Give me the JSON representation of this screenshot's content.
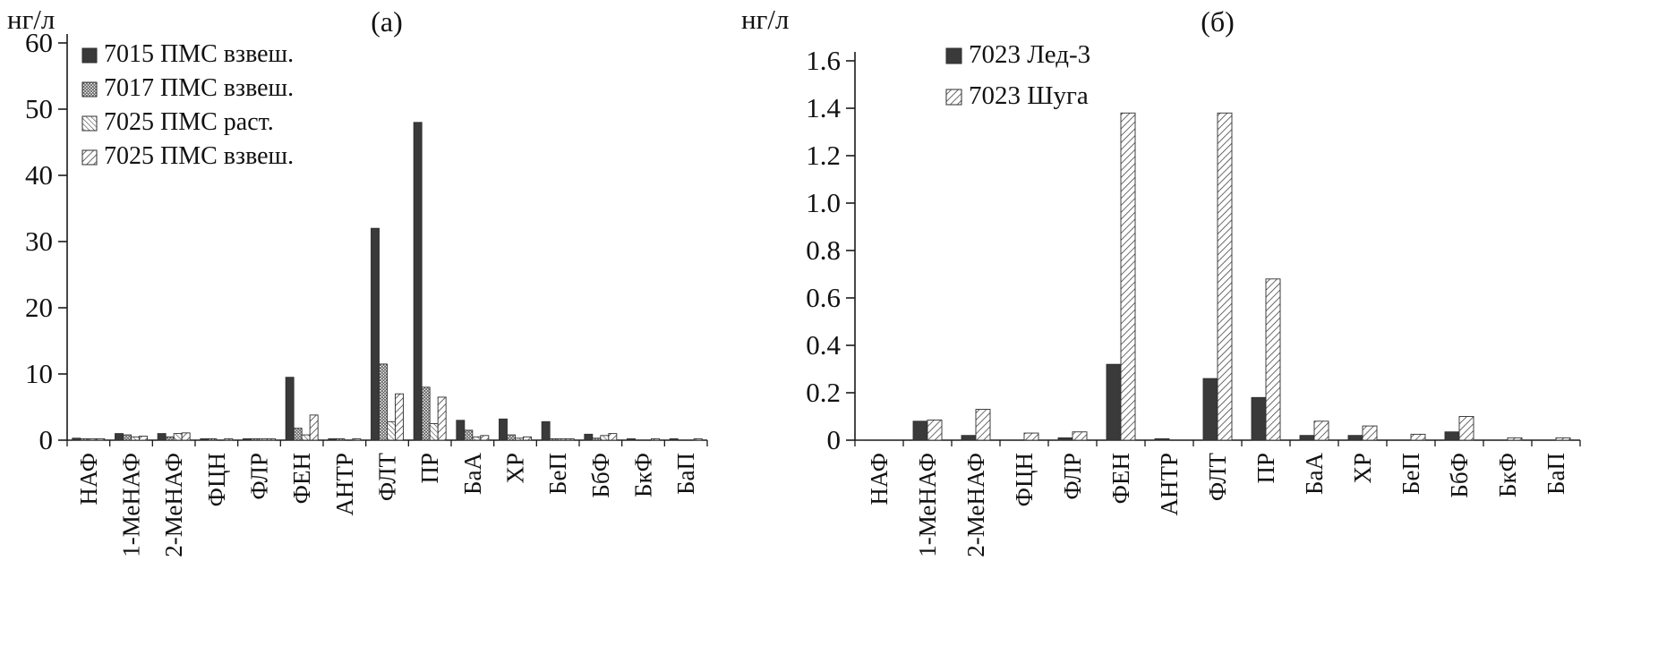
{
  "colors": {
    "background": "#ffffff",
    "bar_dark": "#3a3a3a",
    "hatch": "#3a3a3a",
    "axis": "#1a1a1a",
    "text": "#111111"
  },
  "chart_data": [
    {
      "type": "bar",
      "title": "(а)",
      "ylabel": "нг/л",
      "xlabel": "",
      "ylim": [
        0,
        60
      ],
      "yticks": [
        0,
        10,
        20,
        30,
        40,
        50,
        60
      ],
      "ytick_labels": [
        "0",
        "10",
        "20",
        "30",
        "40",
        "50",
        "60"
      ],
      "grid": false,
      "legend_position": "upper left inside",
      "categories": [
        "НАФ",
        "1-МеНАФ",
        "2-МеНАФ",
        "ФЦН",
        "ФЛР",
        "ФЕН",
        "АНТР",
        "ФЛТ",
        "ПР",
        "БаА",
        "ХР",
        "БеП",
        "БбФ",
        "БкФ",
        "БаП"
      ],
      "series": [
        {
          "name": "7015 ПМС взвеш.",
          "pattern": "solid",
          "values": [
            0.3,
            1.0,
            1.0,
            0.2,
            0.2,
            9.5,
            0.2,
            32,
            48,
            3.0,
            3.2,
            2.8,
            0.9,
            0.1,
            0.2
          ]
        },
        {
          "name": "7017 ПМС взвеш.",
          "pattern": "crosshatch",
          "values": [
            0.2,
            0.8,
            0.5,
            0.1,
            0.2,
            1.8,
            0.1,
            11.5,
            8.0,
            1.5,
            0.8,
            0.2,
            0.3,
            0,
            0
          ]
        },
        {
          "name": "7025 ПМС раст.",
          "pattern": "hatch-back",
          "values": [
            0.1,
            0.5,
            1.0,
            0,
            0.1,
            0.8,
            0,
            2.8,
            2.5,
            0.5,
            0.3,
            0.1,
            0.7,
            0,
            0
          ]
        },
        {
          "name": "7025 ПМС взвеш.",
          "pattern": "hatch-forward",
          "values": [
            0.1,
            0.6,
            1.1,
            0.1,
            0.2,
            3.8,
            0.1,
            7.0,
            6.5,
            0.7,
            0.5,
            0.2,
            1.0,
            0.1,
            0.2
          ]
        }
      ]
    },
    {
      "type": "bar",
      "title": "(б)",
      "ylabel": "нг/л",
      "xlabel": "",
      "ylim": [
        0,
        1.6
      ],
      "yticks": [
        0,
        0.2,
        0.4,
        0.6,
        0.8,
        1.0,
        1.2,
        1.4,
        1.6
      ],
      "ytick_labels": [
        "0",
        "0.2",
        "0.4",
        "0.6",
        "0.8",
        "1.0",
        "1.2",
        "1.4",
        "1.6"
      ],
      "grid": false,
      "legend_position": "upper left inside",
      "categories": [
        "НАФ",
        "1-МеНАФ",
        "2-МеНАФ",
        "ФЦН",
        "ФЛР",
        "ФЕН",
        "АНТР",
        "ФЛТ",
        "ПР",
        "БаА",
        "ХР",
        "БеП",
        "БбФ",
        "БкФ",
        "БаП"
      ],
      "series": [
        {
          "name": "7023 Лед-3",
          "pattern": "solid",
          "values": [
            0,
            0.08,
            0.02,
            0,
            0.01,
            0.32,
            0.005,
            0.26,
            0.18,
            0.02,
            0.02,
            0,
            0.035,
            0,
            0
          ]
        },
        {
          "name": "7023 Шуга",
          "pattern": "hatch-forward",
          "values": [
            0,
            0.085,
            0.13,
            0.03,
            0.035,
            1.38,
            0,
            1.38,
            0.68,
            0.08,
            0.06,
            0.025,
            0.1,
            0.01,
            0.01
          ]
        }
      ]
    }
  ]
}
